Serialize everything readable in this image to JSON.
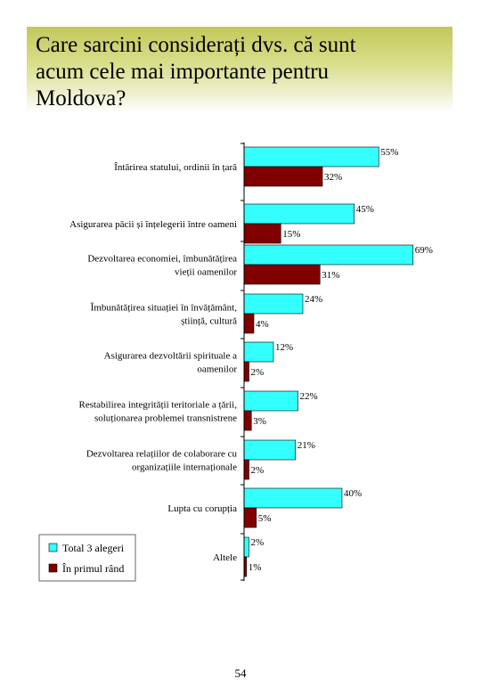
{
  "page": {
    "title_lines": [
      "Care sarcini considerați dvs. că sunt",
      "acum cele mai importante pentru",
      "Moldova?"
    ],
    "page_number": "54"
  },
  "colors": {
    "total": "#33ffff",
    "first": "#800000",
    "title_band": "#c3c85a"
  },
  "chart_data": {
    "type": "bar",
    "orientation": "horizontal",
    "categories": [
      [
        "Întărirea statului, ordinii în țară"
      ],
      [
        "Asigurarea păcii și înțelegerii între oameni"
      ],
      [
        "Dezvoltarea economiei, îmbunătățirea",
        "vieții oamenilor"
      ],
      [
        "Îmbunătățirea situației în învățământ,",
        "știință, cultură"
      ],
      [
        "Asigurarea dezvoltării spirituale a",
        "oamenilor"
      ],
      [
        "Restabilirea integrității teritoriale a țării,",
        "soluționarea problemei transnistrene"
      ],
      [
        "Dezvoltarea relațiilor de colaborare cu",
        "organizațiile internaționale"
      ],
      [
        "Lupta cu corupția"
      ],
      [
        "Altele"
      ]
    ],
    "series": [
      {
        "name": "Total 3 alegeri",
        "values": [
          55,
          45,
          69,
          24,
          12,
          22,
          21,
          40,
          2
        ],
        "labels": [
          "55%",
          "45%",
          "69%",
          "24%",
          "12%",
          "22%",
          "21%",
          "40%",
          "2%"
        ]
      },
      {
        "name": "În primul rând",
        "values": [
          32,
          15,
          31,
          4,
          2,
          3,
          2,
          5,
          1
        ],
        "labels": [
          "32%",
          "15%",
          "31%",
          "4%",
          "2%",
          "3%",
          "2%",
          "5%",
          "1%"
        ]
      }
    ],
    "xlim": [
      0,
      70
    ],
    "grid": false,
    "legend": "bottom-left"
  }
}
